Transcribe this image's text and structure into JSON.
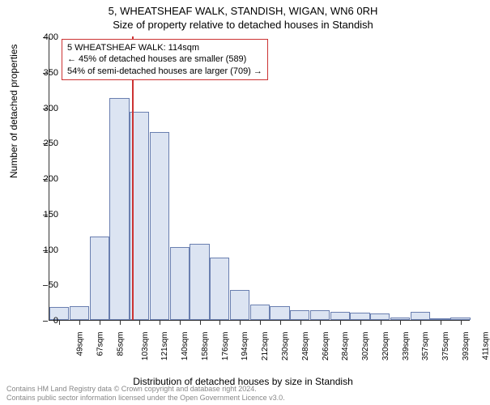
{
  "title": "5, WHEATSHEAF WALK, STANDISH, WIGAN, WN6 0RH",
  "subtitle": "Size of property relative to detached houses in Standish",
  "chart": {
    "type": "histogram",
    "ylabel": "Number of detached properties",
    "xlabel": "Distribution of detached houses by size in Standish",
    "ylim": [
      0,
      400
    ],
    "ytick_step": 50,
    "yticks": [
      0,
      50,
      100,
      150,
      200,
      250,
      300,
      350,
      400
    ],
    "xticks": [
      "49sqm",
      "67sqm",
      "85sqm",
      "103sqm",
      "121sqm",
      "140sqm",
      "158sqm",
      "176sqm",
      "194sqm",
      "212sqm",
      "230sqm",
      "248sqm",
      "266sqm",
      "284sqm",
      "302sqm",
      "320sqm",
      "339sqm",
      "357sqm",
      "375sqm",
      "393sqm",
      "411sqm"
    ],
    "bar_values": [
      18,
      19,
      118,
      313,
      294,
      265,
      103,
      107,
      88,
      42,
      22,
      20,
      14,
      14,
      12,
      10,
      9,
      4,
      12,
      2,
      3
    ],
    "bar_fill": "#dce4f2",
    "bar_border": "#6a7fb0",
    "background": "#ffffff",
    "axis_color": "#333333",
    "font_size": 11,
    "title_fontsize": 13,
    "marker": {
      "x_index": 3.6,
      "line_color": "#cc3333",
      "box_border": "#cc3333",
      "box_bg": "#ffffff",
      "lines": [
        "5 WHEATSHEAF WALK: 114sqm",
        "← 45% of detached houses are smaller (589)",
        "54% of semi-detached houses are larger (709) →"
      ]
    }
  },
  "footer": {
    "line1": "Contains HM Land Registry data © Crown copyright and database right 2024.",
    "line2": "Contains public sector information licensed under the Open Government Licence v3.0."
  }
}
